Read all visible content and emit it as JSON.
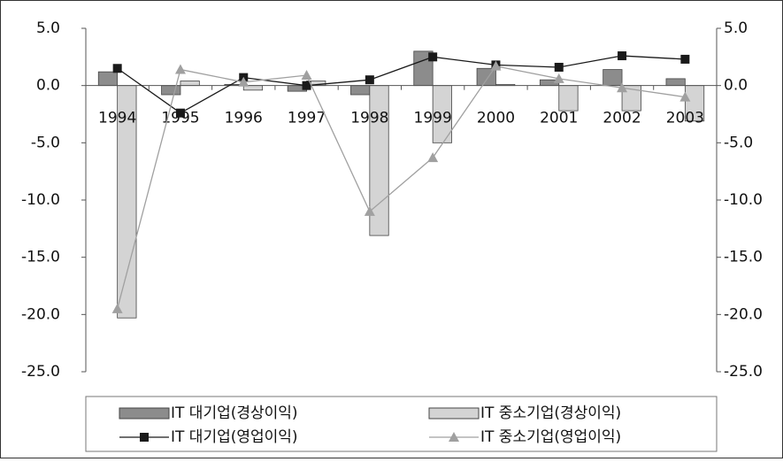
{
  "chart_data": {
    "type": "bar_line",
    "categories": [
      "1994",
      "1995",
      "1996",
      "1997",
      "1998",
      "1999",
      "2000",
      "2001",
      "2002",
      "2003"
    ],
    "series": [
      {
        "name": "IT 대기업(경상이익)",
        "type": "bar",
        "color": "#8c8c8c",
        "values": [
          1.2,
          -0.8,
          0.1,
          -0.5,
          -0.8,
          3.0,
          1.5,
          0.5,
          1.4,
          0.6
        ]
      },
      {
        "name": "IT 중소기업(경상이익)",
        "type": "bar",
        "color": "#d4d4d4",
        "values": [
          -20.3,
          0.4,
          -0.4,
          0.4,
          -13.1,
          -5.0,
          0.1,
          -2.2,
          -2.2,
          -3.1
        ]
      },
      {
        "name": "IT 대기업(영업이익)",
        "type": "line",
        "axis": "y2",
        "color": "#1a1a1a",
        "marker": "square",
        "values": [
          1.5,
          -2.4,
          0.7,
          0.0,
          0.5,
          2.5,
          1.8,
          1.6,
          2.6,
          2.3
        ]
      },
      {
        "name": "IT 중소기업(영업이익)",
        "type": "line",
        "axis": "y2",
        "color": "#a0a0a0",
        "marker": "triangle",
        "values": [
          -19.5,
          1.4,
          0.3,
          0.9,
          -11.0,
          -6.3,
          1.7,
          0.6,
          -0.2,
          -1.0
        ]
      }
    ],
    "ylim": [
      -25,
      5
    ],
    "yticks": [
      {
        "value": 5,
        "label": "5.0"
      },
      {
        "value": 0,
        "label": "0.0"
      },
      {
        "value": -5,
        "label": "-5.0"
      },
      {
        "value": -10,
        "label": "-10.0"
      },
      {
        "value": -15,
        "label": "-15.0"
      },
      {
        "value": -20,
        "label": "-20.0"
      },
      {
        "value": -25,
        "label": "-25.0"
      }
    ],
    "y2lim": [
      -25,
      5
    ],
    "y2ticks": [
      {
        "value": 5,
        "label": "5.0"
      },
      {
        "value": 0,
        "label": "0.0"
      },
      {
        "value": -5,
        "label": "-5.0"
      },
      {
        "value": -10,
        "label": "-10.0"
      },
      {
        "value": -15,
        "label": "-15.0"
      },
      {
        "value": -20,
        "label": "-20.0"
      },
      {
        "value": -25,
        "label": "-25.0"
      }
    ],
    "legend": "bottom"
  }
}
